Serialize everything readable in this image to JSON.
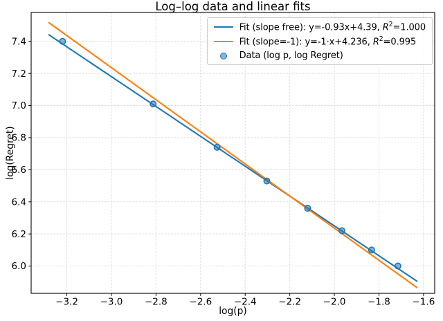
{
  "chart_data": {
    "type": "scatter",
    "title": "Log–log data and linear fits",
    "xlabel": "log(p)",
    "ylabel": "log(Regret)",
    "xlim": [
      -3.36,
      -1.55
    ],
    "ylim": [
      5.83,
      7.58
    ],
    "grid": true,
    "legend_position": "upper right",
    "x_ticks": [
      {
        "v": -3.2,
        "label": "−3.2"
      },
      {
        "v": -3.0,
        "label": "−3.0"
      },
      {
        "v": -2.8,
        "label": "−2.8"
      },
      {
        "v": -2.6,
        "label": "−2.6"
      },
      {
        "v": -2.4,
        "label": "−2.4"
      },
      {
        "v": -2.2,
        "label": "−2.2"
      },
      {
        "v": -2.0,
        "label": "−2.0"
      },
      {
        "v": -1.8,
        "label": "−1.8"
      },
      {
        "v": -1.6,
        "label": "−1.6"
      }
    ],
    "y_ticks": [
      {
        "v": 6.0,
        "label": "6.0"
      },
      {
        "v": 6.2,
        "label": "6.2"
      },
      {
        "v": 6.4,
        "label": "6.4"
      },
      {
        "v": 6.6,
        "label": "6.6"
      },
      {
        "v": 6.8,
        "label": "6.8"
      },
      {
        "v": 7.0,
        "label": "7.0"
      },
      {
        "v": 7.2,
        "label": "7.2"
      },
      {
        "v": 7.4,
        "label": "7.4"
      }
    ],
    "math_notation": {
      "variable": "R",
      "exponent": "2",
      "equals": "="
    },
    "series": [
      {
        "name": "fit-slope-free",
        "kind": "line",
        "color": "#1f77b4",
        "equation": {
          "slope": -0.93,
          "intercept": 4.39
        },
        "x_span": [
          -3.28,
          -1.63
        ],
        "legend_label_prefix": "Fit (slope free): y=-0.93x+4.39, ",
        "r_squared": "1.000"
      },
      {
        "name": "fit-slope-minus-one",
        "kind": "line",
        "color": "#ff7f0e",
        "equation": {
          "slope": -1,
          "intercept": 4.236
        },
        "x_span": [
          -3.28,
          -1.63
        ],
        "legend_label_prefix": "Fit (slope=-1): y=-1·x+4.236, ",
        "r_squared": "0.995"
      },
      {
        "name": "data-points",
        "kind": "scatter",
        "color": "#1f77b4",
        "marker_fill_opacity": 0.55,
        "points": {
          "x": [
            -3.219,
            -2.813,
            -2.526,
            -2.303,
            -2.12,
            -1.966,
            -1.833,
            -1.715
          ],
          "y": [
            7.4,
            7.01,
            6.74,
            6.53,
            6.36,
            6.22,
            6.1,
            6.0
          ]
        },
        "legend_label_prefix": "Data (log p, log Regret)",
        "r_squared": null
      }
    ]
  }
}
